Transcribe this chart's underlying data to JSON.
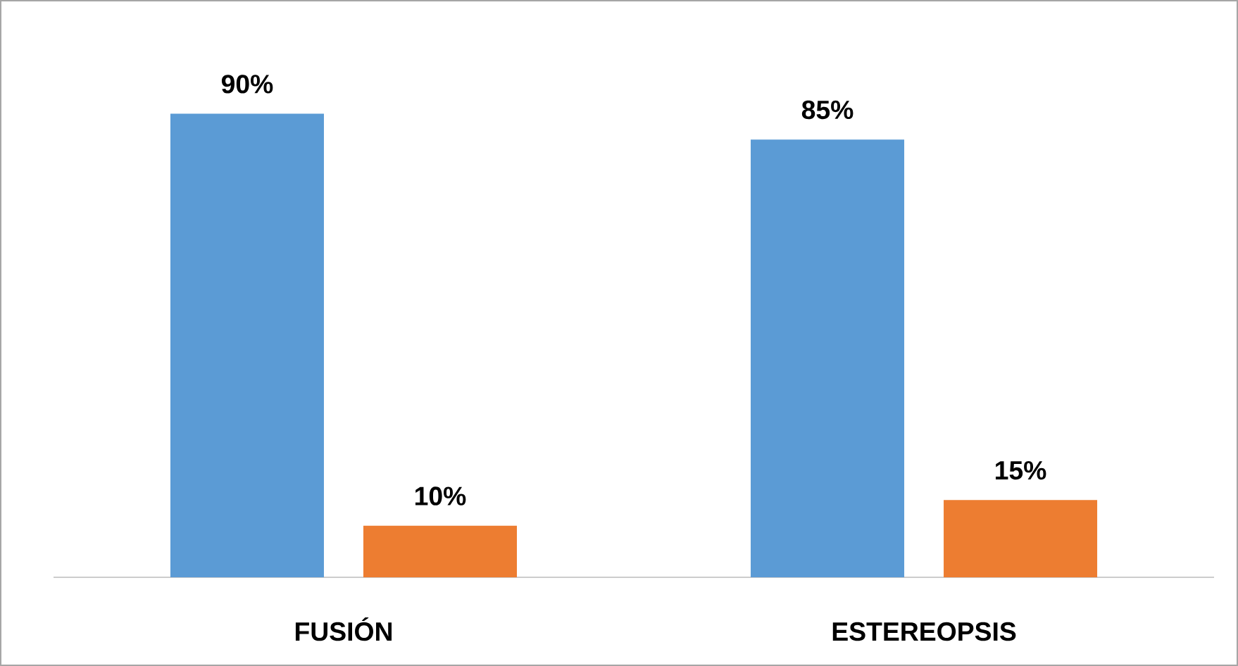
{
  "chart_data": {
    "type": "bar",
    "categories": [
      "FUSIÓN",
      "ESTEREOPSIS"
    ],
    "series": [
      {
        "color": "#5b9bd5",
        "values": [
          90,
          85
        ],
        "value_labels": [
          "90%",
          "85%"
        ]
      },
      {
        "color": "#ed7d31",
        "values": [
          10,
          15
        ],
        "value_labels": [
          "10%",
          "15%"
        ]
      }
    ]
  }
}
